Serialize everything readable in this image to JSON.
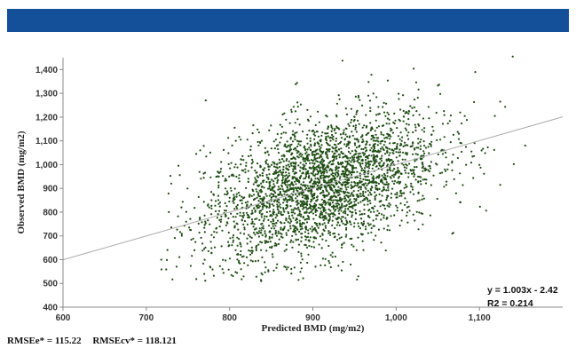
{
  "colors": {
    "header_bar": "#14509a",
    "points": "#1f4d14",
    "trendline": "#aaaaaa",
    "axis": "#888888"
  },
  "footer": {
    "rmse_e": "RMSEe* = 115.22",
    "rmse_cv": "RMSEcv* = 118.121"
  },
  "chart_data": {
    "type": "scatter",
    "xlabel": "Predicted BMD (mg/m2)",
    "ylabel": "Observed BMD (mg/m2)",
    "xlim": [
      600,
      1200
    ],
    "ylim": [
      400,
      1450
    ],
    "x_ticks": [
      600,
      700,
      800,
      900,
      1000,
      1100
    ],
    "x_tick_labels": [
      "600",
      "700",
      "800",
      "900",
      "1,000",
      "1,100"
    ],
    "y_ticks": [
      400,
      500,
      600,
      700,
      800,
      900,
      1000,
      1100,
      1200,
      1300,
      1400
    ],
    "y_tick_labels": [
      "400",
      "500",
      "600",
      "700",
      "800",
      "900",
      "1,000",
      "1,100",
      "1,200",
      "1,300",
      "1,400"
    ],
    "grid": false,
    "legend": "none",
    "trendline": {
      "slope": 1.003,
      "intercept": -2.42
    },
    "annotations": {
      "equation": "y = 1.003x - 2.42",
      "r2": "R2 = 0.214"
    },
    "point_count": 3000,
    "point_distribution": {
      "x_mean": 910,
      "x_sd": 70,
      "y_sd": 140,
      "x_range": [
        715,
        1155
      ],
      "y_range": [
        510,
        1455
      ]
    },
    "outlier_points": [
      {
        "x": 1140,
        "y": 1455
      },
      {
        "x": 1095,
        "y": 1390
      },
      {
        "x": 1125,
        "y": 1265
      },
      {
        "x": 1125,
        "y": 915
      },
      {
        "x": 1155,
        "y": 1080
      },
      {
        "x": 718,
        "y": 600
      },
      {
        "x": 730,
        "y": 920
      },
      {
        "x": 838,
        "y": 510
      },
      {
        "x": 760,
        "y": 1045
      }
    ]
  }
}
